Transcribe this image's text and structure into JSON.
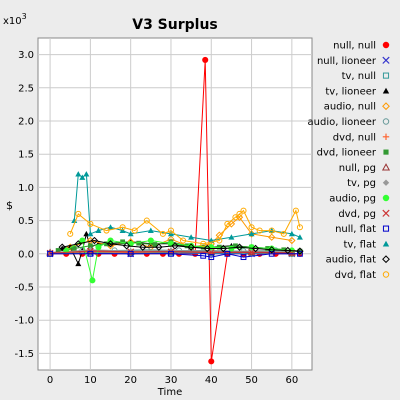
{
  "chart_data": {
    "type": "scatter",
    "title": "V3 Surplus",
    "xlabel": "Time",
    "ylabel": "$",
    "y_multiplier_label": "x10",
    "y_multiplier_exponent": "3",
    "xlim": [
      -3,
      65
    ],
    "ylim": [
      -1.75,
      3.25
    ],
    "xticks": [
      0,
      10,
      20,
      30,
      40,
      50,
      60
    ],
    "yticks": [
      -1.5,
      -1.0,
      -0.5,
      0.0,
      0.5,
      1.0,
      1.5,
      2.0,
      2.5,
      3.0
    ],
    "ytick_labels": [
      "-1.5",
      "-1.0",
      "-0.5",
      "0.0",
      "0.5",
      "1.0",
      "1.5",
      "2.0",
      "2.5",
      "3.0"
    ],
    "grid": true,
    "legend_position": "right",
    "series": [
      {
        "name": "null, null",
        "color": "#ff0000",
        "marker": "filled-circle",
        "x": [
          0,
          4,
          8,
          12,
          16,
          20,
          24,
          28,
          32,
          36,
          38.5,
          40,
          44,
          48,
          52,
          56,
          60,
          62
        ],
        "y": [
          0,
          0,
          0,
          0,
          0,
          0,
          0,
          0,
          0,
          0,
          2.92,
          -1.62,
          0,
          0,
          0,
          0,
          0,
          0
        ]
      },
      {
        "name": "null, lioneer",
        "color": "#3333cc",
        "marker": "x",
        "x": [
          0,
          10,
          20,
          30,
          40,
          50,
          60
        ],
        "y": [
          0,
          0.01,
          0,
          0.01,
          0,
          0,
          0
        ]
      },
      {
        "name": "tv, null",
        "color": "#339999",
        "marker": "square",
        "x": [
          0,
          10,
          20,
          30,
          40,
          50,
          60
        ],
        "y": [
          0,
          0.02,
          0.01,
          0.02,
          0.01,
          0.01,
          0
        ]
      },
      {
        "name": "tv, lioneer",
        "color": "#000000",
        "marker": "filled-triangle",
        "x": [
          3,
          5,
          7,
          8,
          9,
          10,
          12,
          15,
          20,
          25,
          30,
          35,
          40,
          45,
          50,
          55,
          60
        ],
        "y": [
          0.08,
          0.1,
          -0.15,
          0.05,
          0.3,
          0.1,
          0.15,
          0.15,
          0.18,
          0.15,
          0.15,
          0.1,
          0.1,
          0.12,
          0.1,
          0.08,
          0.05
        ]
      },
      {
        "name": "audio, null",
        "color": "#ff9900",
        "marker": "diamond",
        "x": [
          5,
          10,
          15,
          20,
          25,
          30,
          35,
          40,
          42,
          45,
          47,
          50,
          55,
          60
        ],
        "y": [
          0.1,
          0.2,
          0.12,
          0.18,
          0.1,
          0.22,
          0.1,
          0.15,
          0.28,
          0.45,
          0.55,
          0.3,
          0.25,
          0.2
        ]
      },
      {
        "name": "audio, lioneer",
        "color": "#669999",
        "marker": "circle",
        "x": [
          0,
          8,
          16,
          24,
          32,
          40,
          48,
          56,
          62
        ],
        "y": [
          0,
          0.05,
          0.05,
          0.06,
          0.05,
          0.05,
          0.04,
          0.05,
          0.03
        ]
      },
      {
        "name": "dvd, null",
        "color": "#ff6633",
        "marker": "plus",
        "x": [
          0,
          10,
          20,
          30,
          40,
          50,
          60
        ],
        "y": [
          0.01,
          0.03,
          0.02,
          0.03,
          0.02,
          0.02,
          0.01
        ]
      },
      {
        "name": "dvd, lioneer",
        "color": "#339933",
        "marker": "filled-square",
        "x": [
          2,
          6,
          10,
          14,
          18,
          22,
          26,
          30,
          34,
          38,
          42,
          46,
          50,
          54,
          58,
          62
        ],
        "y": [
          0.05,
          0.08,
          0.12,
          0.15,
          0.18,
          0.16,
          0.14,
          0.18,
          0.12,
          0.1,
          0.1,
          0.12,
          0.1,
          0.08,
          0.06,
          0.04
        ]
      },
      {
        "name": "null, pg",
        "color": "#993333",
        "marker": "triangle",
        "x": [
          0,
          10,
          20,
          30,
          40,
          50,
          60
        ],
        "y": [
          0.02,
          0.05,
          0.03,
          0.04,
          0.03,
          0.03,
          0.02
        ]
      },
      {
        "name": "tv, pg",
        "color": "#999999",
        "marker": "filled-diamond",
        "x": [
          0,
          10,
          20,
          30,
          40,
          50,
          60
        ],
        "y": [
          0.01,
          0.06,
          0.04,
          0.05,
          0.04,
          0.04,
          0.03
        ]
      },
      {
        "name": "audio, pg",
        "color": "#33ff33",
        "marker": "filled-circle",
        "x": [
          4,
          8,
          10.5,
          12,
          15,
          20,
          25,
          30,
          35,
          40,
          45,
          50,
          55,
          60
        ],
        "y": [
          0.05,
          0.2,
          -0.4,
          0.1,
          0.2,
          0.15,
          0.2,
          0.15,
          0.12,
          0.1,
          0.08,
          0.1,
          0.08,
          0.05
        ]
      },
      {
        "name": "dvd, pg",
        "color": "#cc3333",
        "marker": "x",
        "x": [
          0,
          10,
          20,
          30,
          40,
          50,
          60
        ],
        "y": [
          0.01,
          0.04,
          0.03,
          0.03,
          0.02,
          0.02,
          0.01
        ]
      },
      {
        "name": "null, flat",
        "color": "#0000cc",
        "marker": "square",
        "x": [
          0,
          10,
          20,
          30,
          38,
          40,
          44,
          48,
          55,
          62
        ],
        "y": [
          0,
          0,
          0,
          0,
          -0.03,
          -0.05,
          0,
          -0.05,
          0,
          0
        ]
      },
      {
        "name": "tv, flat",
        "color": "#009999",
        "marker": "filled-triangle",
        "x": [
          6,
          7,
          8,
          9,
          10,
          12,
          15,
          18,
          20,
          25,
          30,
          35,
          40,
          45,
          50,
          55,
          60,
          62
        ],
        "y": [
          0.5,
          1.2,
          1.15,
          1.2,
          0.3,
          0.35,
          0.4,
          0.35,
          0.3,
          0.35,
          0.3,
          0.25,
          0.2,
          0.25,
          0.3,
          0.35,
          0.3,
          0.25
        ]
      },
      {
        "name": "audio, flat",
        "color": "#000000",
        "marker": "diamond",
        "x": [
          3,
          7,
          11,
          15,
          19,
          23,
          27,
          31,
          35,
          39,
          43,
          47,
          51,
          55,
          59,
          62
        ],
        "y": [
          0.1,
          0.15,
          0.2,
          0.15,
          0.12,
          0.1,
          0.1,
          0.12,
          0.1,
          0.08,
          0.08,
          0.1,
          0.08,
          0.06,
          0.05,
          0.04
        ]
      },
      {
        "name": "dvd, flat",
        "color": "#ffaa00",
        "marker": "circle",
        "x": [
          5,
          7,
          10,
          14,
          18,
          21,
          24,
          28,
          30,
          33,
          38,
          42,
          44,
          46,
          47,
          48,
          50,
          52,
          55,
          58,
          61,
          62
        ],
        "y": [
          0.3,
          0.6,
          0.45,
          0.35,
          0.4,
          0.35,
          0.5,
          0.3,
          0.35,
          0.2,
          0.15,
          0.2,
          0.45,
          0.55,
          0.6,
          0.65,
          0.4,
          0.35,
          0.35,
          0.3,
          0.65,
          0.4
        ]
      }
    ]
  }
}
